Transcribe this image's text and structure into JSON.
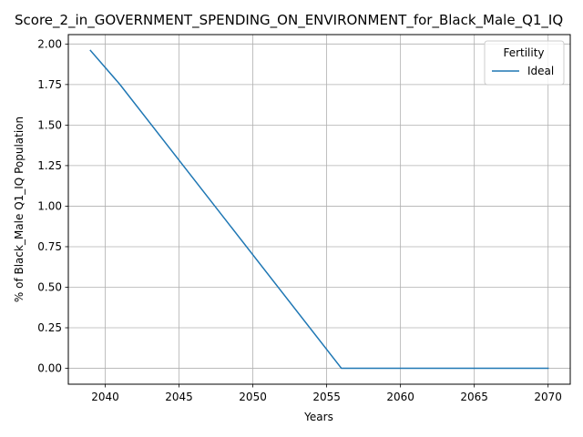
{
  "chart_data": {
    "type": "line",
    "title": "Score_2_in_GOVERNMENT_SPENDING_ON_ENVIRONMENT_for_Black_Male_Q1_IQ",
    "xlabel": "Years",
    "ylabel": "% of Black_Male Q1_IQ Population",
    "xlim": [
      2037.5,
      2071.5
    ],
    "ylim": [
      -0.098,
      2.058
    ],
    "xticks": [
      2040,
      2045,
      2050,
      2055,
      2060,
      2065,
      2070
    ],
    "yticks": [
      0.0,
      0.25,
      0.5,
      0.75,
      1.0,
      1.25,
      1.5,
      1.75,
      2.0
    ],
    "xtick_labels": [
      "2040",
      "2045",
      "2050",
      "2055",
      "2060",
      "2065",
      "2070"
    ],
    "ytick_labels": [
      "0.00",
      "0.25",
      "0.50",
      "0.75",
      "1.00",
      "1.25",
      "1.50",
      "1.75",
      "2.00"
    ],
    "grid": true,
    "legend": {
      "title": "Fertility",
      "placement": "top-right"
    },
    "series": [
      {
        "name": "Ideal",
        "color": "#1f77b4",
        "x": [
          2039,
          2041,
          2056,
          2057,
          2058,
          2059,
          2060,
          2061,
          2062,
          2063,
          2064,
          2065,
          2066,
          2067,
          2068,
          2069,
          2070
        ],
        "y": [
          1.96,
          1.75,
          0.0,
          0.0,
          0.0,
          0.0,
          0.0,
          0.0,
          0.0,
          0.0,
          0.0,
          0.0,
          0.0,
          0.0,
          0.0,
          0.0,
          0.0
        ]
      }
    ]
  }
}
